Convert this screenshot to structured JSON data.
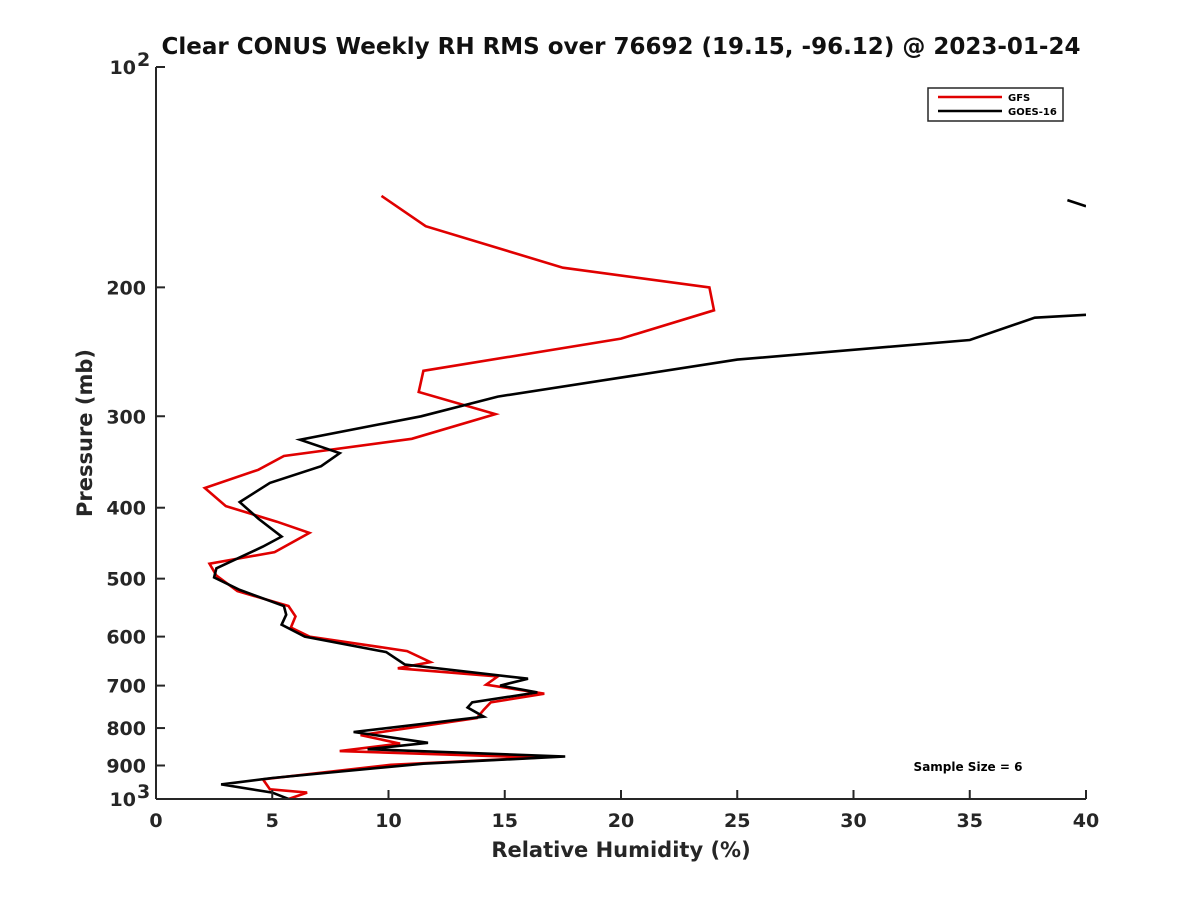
{
  "chart_data": {
    "type": "line",
    "title": "Clear CONUS Weekly RH RMS over 76692 (19.15, -96.12) @ 2023-01-24",
    "xlabel": "Relative Humidity (%)",
    "ylabel": "Pressure (mb)",
    "xlim": [
      0,
      40
    ],
    "ylim": [
      1000,
      100
    ],
    "yscale": "log",
    "y_reversed": true,
    "x_ticks": [
      0,
      5,
      10,
      15,
      20,
      25,
      30,
      35,
      40
    ],
    "x_tick_labels": [
      "0",
      "5",
      "10",
      "15",
      "20",
      "25",
      "30",
      "35",
      "40"
    ],
    "y_ticks": [
      100,
      200,
      300,
      400,
      500,
      600,
      700,
      800,
      900,
      1000
    ],
    "y_tick_labels": [
      {
        "base": "10",
        "exp": "2"
      },
      {
        "base": "200",
        "exp": ""
      },
      {
        "base": "300",
        "exp": ""
      },
      {
        "base": "400",
        "exp": ""
      },
      {
        "base": "500",
        "exp": ""
      },
      {
        "base": "600",
        "exp": ""
      },
      {
        "base": "700",
        "exp": ""
      },
      {
        "base": "800",
        "exp": ""
      },
      {
        "base": "900",
        "exp": ""
      },
      {
        "base": "10",
        "exp": "3"
      }
    ],
    "legend_position": "top-right",
    "series": [
      {
        "name": "GFS",
        "color": "#e00000",
        "segments": [
          [
            [
              9.7,
              150
            ],
            [
              11.6,
              165
            ],
            [
              17.5,
              188
            ],
            [
              23.8,
              200
            ],
            [
              24.0,
              215
            ],
            [
              20.0,
              235
            ],
            [
              11.5,
              260
            ],
            [
              11.3,
              278
            ],
            [
              14.6,
              298
            ],
            [
              11.0,
              322
            ],
            [
              5.5,
              340
            ],
            [
              4.4,
              355
            ],
            [
              2.1,
              376
            ],
            [
              3.0,
              398
            ],
            [
              5.2,
              418
            ],
            [
              6.6,
              433
            ],
            [
              5.1,
              460
            ],
            [
              2.3,
              477
            ],
            [
              2.6,
              495
            ],
            [
              3.5,
              520
            ],
            [
              5.7,
              545
            ],
            [
              6.0,
              563
            ],
            [
              5.8,
              583
            ],
            [
              6.6,
              600
            ],
            [
              10.8,
              628
            ],
            [
              11.8,
              650
            ],
            [
              10.4,
              663
            ],
            [
              14.7,
              680
            ],
            [
              14.2,
              698
            ],
            [
              16.7,
              718
            ],
            [
              14.4,
              738
            ],
            [
              14.1,
              755
            ],
            [
              13.8,
              775
            ],
            [
              8.8,
              818
            ],
            [
              10.5,
              840
            ],
            [
              7.9,
              860
            ],
            [
              16.5,
              878
            ],
            [
              10.1,
              898
            ],
            [
              4.6,
              940
            ],
            [
              4.9,
              970
            ],
            [
              6.5,
              980
            ],
            [
              5.7,
              1000
            ]
          ]
        ]
      },
      {
        "name": "GOES-16",
        "color": "#000000",
        "segments": [
          [
            [
              39.2,
              152
            ],
            [
              40.0,
              155
            ]
          ],
          [
            [
              40.0,
              218
            ],
            [
              37.8,
              220
            ],
            [
              35.0,
              236
            ],
            [
              25.0,
              251
            ],
            [
              14.7,
              282
            ],
            [
              11.4,
              300
            ],
            [
              6.2,
              323
            ],
            [
              7.9,
              337
            ],
            [
              7.1,
              351
            ],
            [
              4.9,
              370
            ],
            [
              3.6,
              393
            ],
            [
              4.4,
              414
            ],
            [
              5.4,
              438
            ],
            [
              4.6,
              452
            ],
            [
              2.6,
              484
            ],
            [
              2.5,
              498
            ],
            [
              3.6,
              518
            ],
            [
              5.5,
              545
            ],
            [
              5.6,
              560
            ],
            [
              5.4,
              578
            ],
            [
              6.4,
              600
            ],
            [
              9.9,
              630
            ],
            [
              10.7,
              655
            ],
            [
              16.0,
              685
            ],
            [
              14.8,
              700
            ],
            [
              16.4,
              715
            ],
            [
              13.6,
              738
            ],
            [
              13.4,
              750
            ],
            [
              14.1,
              772
            ],
            [
              8.5,
              810
            ],
            [
              11.7,
              838
            ],
            [
              9.1,
              855
            ],
            [
              17.6,
              875
            ],
            [
              11.5,
              895
            ],
            [
              5.0,
              936
            ],
            [
              2.8,
              955
            ],
            [
              5.0,
              980
            ],
            [
              5.7,
              1000
            ]
          ]
        ]
      }
    ],
    "annotations": [
      {
        "text": "Sample Size = 6",
        "x": 34.5,
        "y": 925
      }
    ]
  }
}
